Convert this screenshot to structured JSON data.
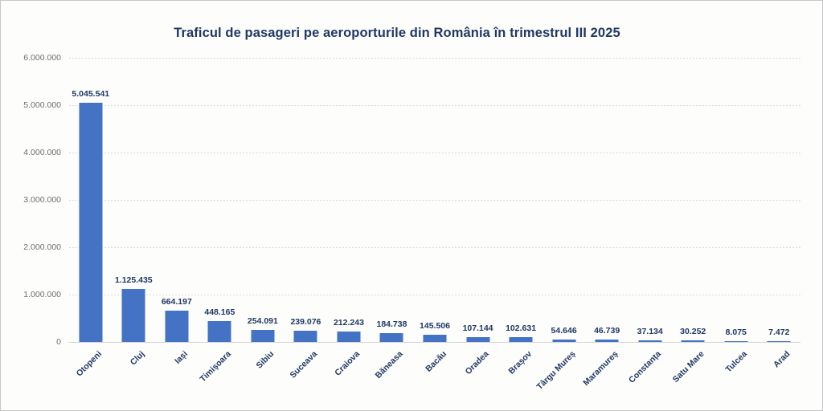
{
  "chart_data": {
    "type": "bar",
    "title": "Traficul de pasageri pe aeroporturile din România în trimestrul III 2025",
    "categories": [
      "Otopeni",
      "Cluj",
      "Iași",
      "Timișoara",
      "Sibiu",
      "Suceava",
      "Craiova",
      "Băneasa",
      "Bacău",
      "Oradea",
      "Brașov",
      "Târgu Mureș",
      "Maramureș",
      "Constanța",
      "Satu Mare",
      "Tulcea",
      "Arad"
    ],
    "values": [
      5045541,
      1125435,
      664197,
      448165,
      254091,
      239076,
      212243,
      184738,
      145506,
      107144,
      102631,
      54646,
      46739,
      37134,
      30252,
      8075,
      7472
    ],
    "value_labels": [
      "5.045.541",
      "1.125.435",
      "664.197",
      "448.165",
      "254.091",
      "239.076",
      "212.243",
      "184.738",
      "145.506",
      "107.144",
      "102.631",
      "54.646",
      "46.739",
      "37.134",
      "30.252",
      "8.075",
      "7.472"
    ],
    "xlabel": "",
    "ylabel": "",
    "ylim": [
      0,
      6000000
    ],
    "ytick_interval": 1000000,
    "ytick_labels": [
      "0",
      "1.000.000",
      "2.000.000",
      "3.000.000",
      "4.000.000",
      "5.000.000",
      "6.000.000"
    ],
    "grid": "horizontal-dashed",
    "legend_position": "none",
    "bar_color": "#4472c4",
    "title_color": "#1f3864",
    "data_label_color": "#1f3864",
    "axis_tick_color": "#6f6f6f"
  }
}
